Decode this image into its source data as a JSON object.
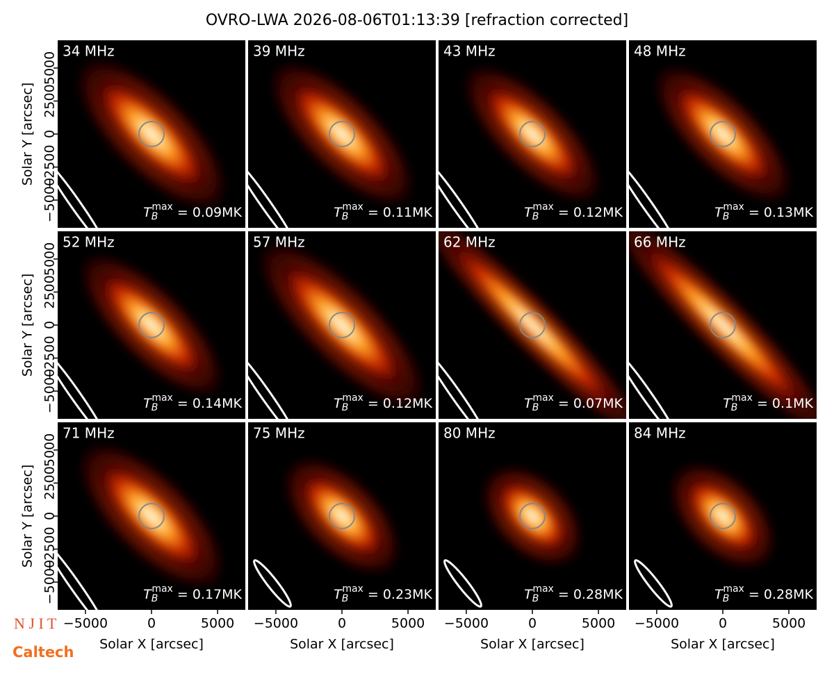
{
  "title": "OVRO-LWA 2026-08-06T01:13:39 [refraction corrected]",
  "axes": {
    "xlabel": "Solar X [arcsec]",
    "ylabel": "Solar Y [arcsec]",
    "xlim": [
      -7100,
      7100
    ],
    "ylim": [
      -7100,
      7100
    ],
    "xticks": [
      {
        "value": -5000,
        "label": "−5000"
      },
      0,
      5000
    ],
    "yticks": [
      {
        "value": -5000,
        "label": "−5000"
      },
      {
        "value": -2500,
        "label": "−2500"
      },
      0,
      2500,
      5000
    ]
  },
  "logos": [
    "N J I T",
    "Caltech"
  ],
  "chart_data": [
    {
      "type": "image",
      "label": "34 MHz",
      "annotation": {
        "symbol": "T",
        "subscript": "B",
        "superscript": "max",
        "text": " = 0.09MK"
      }
    },
    {
      "type": "image",
      "label": "39 MHz",
      "annotation": {
        "symbol": "T",
        "subscript": "B",
        "superscript": "max",
        "text": " = 0.11MK"
      }
    },
    {
      "type": "image",
      "label": "43 MHz",
      "annotation": {
        "symbol": "T",
        "subscript": "B",
        "superscript": "max",
        "text": " = 0.12MK"
      }
    },
    {
      "type": "image",
      "label": "48 MHz",
      "annotation": {
        "symbol": "T",
        "subscript": "B",
        "superscript": "max",
        "text": " = 0.13MK"
      }
    },
    {
      "type": "image",
      "label": "52 MHz",
      "annotation": {
        "symbol": "T",
        "subscript": "B",
        "superscript": "max",
        "text": " = 0.14MK"
      }
    },
    {
      "type": "image",
      "label": "57 MHz",
      "annotation": {
        "symbol": "T",
        "subscript": "B",
        "superscript": "max",
        "text": " = 0.12MK"
      }
    },
    {
      "type": "image",
      "label": "62 MHz",
      "annotation": {
        "symbol": "T",
        "subscript": "B",
        "superscript": "max",
        "text": " = 0.07MK"
      }
    },
    {
      "type": "image",
      "label": "66 MHz",
      "annotation": {
        "symbol": "T",
        "subscript": "B",
        "superscript": "max",
        "text": " = 0.1MK"
      }
    },
    {
      "type": "image",
      "label": "71 MHz",
      "annotation": {
        "symbol": "T",
        "subscript": "B",
        "superscript": "max",
        "text": " = 0.17MK"
      }
    },
    {
      "type": "image",
      "label": "75 MHz",
      "annotation": {
        "symbol": "T",
        "subscript": "B",
        "superscript": "max",
        "text": " = 0.23MK"
      }
    },
    {
      "type": "image",
      "label": "80 MHz",
      "annotation": {
        "symbol": "T",
        "subscript": "B",
        "superscript": "max",
        "text": " = 0.28MK"
      }
    },
    {
      "type": "image",
      "label": "84 MHz",
      "annotation": {
        "symbol": "T",
        "subscript": "B",
        "superscript": "max",
        "text": " = 0.28MK"
      }
    }
  ]
}
